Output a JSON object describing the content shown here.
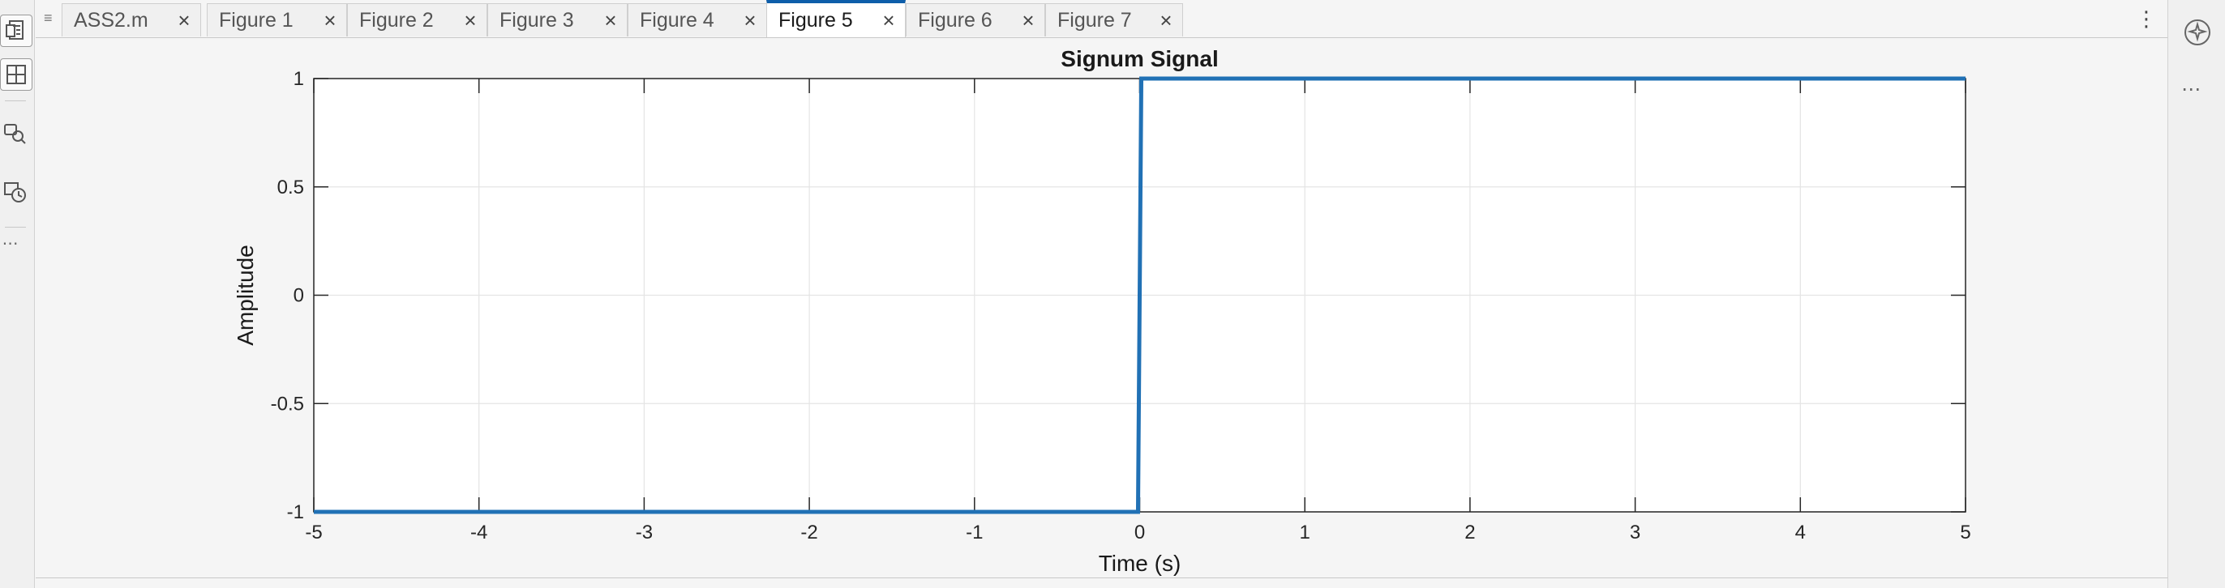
{
  "tabs": [
    {
      "label": "ASS2.m",
      "active": false
    },
    {
      "label": "Figure 1",
      "active": false
    },
    {
      "label": "Figure 2",
      "active": false
    },
    {
      "label": "Figure 3",
      "active": false
    },
    {
      "label": "Figure 4",
      "active": false
    },
    {
      "label": "Figure 5",
      "active": true
    },
    {
      "label": "Figure 6",
      "active": false
    },
    {
      "label": "Figure 7",
      "active": false
    }
  ],
  "colors": {
    "accent": "#0e5eaa",
    "series": "#2171b5",
    "grid": "#e4e4e4"
  },
  "icons": {
    "left_strip": [
      "editor-file-icon",
      "layout-grid-icon",
      "search-chat-icon",
      "history-clock-icon",
      "more-options-icon"
    ],
    "right_strip": [
      "copilot-icon",
      "more-options-icon"
    ]
  },
  "chart_data": {
    "type": "line",
    "title": "Signum Signal",
    "xlabel": "Time (s)",
    "ylabel": "Amplitude",
    "xlim": [
      -5,
      5
    ],
    "ylim": [
      -1,
      1
    ],
    "grid": true,
    "xticks": [
      -5,
      -4,
      -3,
      -2,
      -1,
      0,
      1,
      2,
      3,
      4,
      5
    ],
    "yticks": [
      -1,
      -0.5,
      0,
      0.5,
      1
    ],
    "series": [
      {
        "x": [
          -5,
          -0.01,
          0.01,
          5
        ],
        "y": [
          -1,
          -1,
          1,
          1
        ]
      }
    ]
  }
}
